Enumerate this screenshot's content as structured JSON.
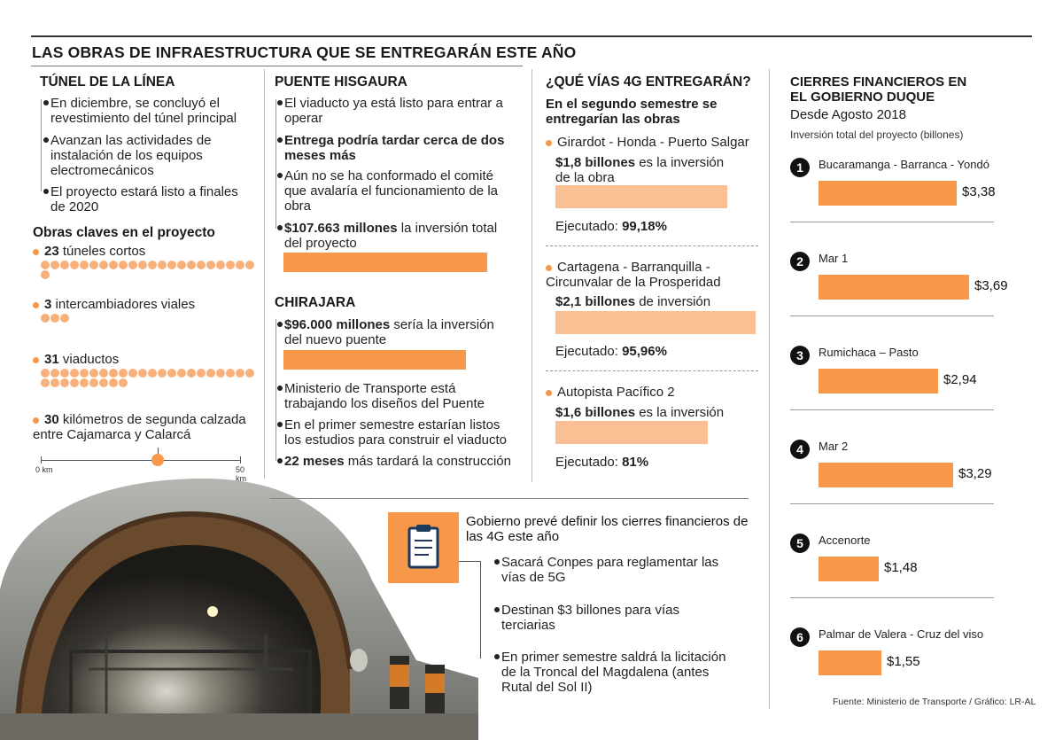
{
  "header": {
    "title": "LAS OBRAS DE INFRAESTRUCTURA QUE SE ENTREGARÁN ESTE AÑO"
  },
  "tunel": {
    "title": "TÚNEL DE LA LÍNEA",
    "items": [
      "En diciembre, se concluyó el revestimiento del túnel principal",
      "Avanzan las actividades de instalación de los equipos electromecánicos",
      "El proyecto estará listo a finales de 2020"
    ],
    "obras_title": "Obras claves en el proyecto",
    "obras": [
      {
        "num": "23",
        "text": "túneles cortos",
        "count": 23
      },
      {
        "num": "3",
        "text": "intercambiadores viales",
        "count": 3
      },
      {
        "num": "31",
        "text": "viaductos",
        "count": 31
      }
    ],
    "km_num": "30",
    "km_text": "kilómetros de segunda calzada entre Cajamarca y Calarcá",
    "scale_start": "0 km",
    "scale_end": "50 km",
    "scale_value": 30,
    "scale_max": 50
  },
  "hisgaura": {
    "title": "PUENTE HISGAURA",
    "items": [
      "El viaducto ya está listo para entrar a operar",
      "Entrega podría tardar cerca de dos meses más",
      "Aún no se ha conformado el comité que avalaría el funcionamiento de la obra"
    ],
    "inv_bold": "$107.663 millones",
    "inv_text": "la inversión total del proyecto"
  },
  "chirajara": {
    "title": "CHIRAJARA",
    "inv_bold": "$96.000 millones",
    "inv_text": "sería la inversión del nuevo puente",
    "items": [
      "Ministerio de Transporte está trabajando los diseños del Puente",
      "En el primer semestre estarían listos los estudios para construir el viaducto"
    ],
    "last_bold": "22 meses",
    "last_text": "más tardará la construcción"
  },
  "vias4g": {
    "title": "¿QUÉ VÍAS 4G ENTREGARÁN?",
    "subtitle": "En el segundo semestre se entregarían las obras",
    "exec_label": "Ejecutado:",
    "projects": [
      {
        "name": "Girardot - Honda - Puerto Salgar",
        "inv_bold": "$1,8 billones",
        "inv_text": "es la inversión de la obra",
        "executed": "99,18%",
        "value": 1.8
      },
      {
        "name": "Cartagena - Barranquilla - Circunvalar de la Prosperidad",
        "inv_bold": "$2,1 billones",
        "inv_text": "de inversión",
        "executed": "95,96%",
        "value": 2.1
      },
      {
        "name": "Autopista Pacífico 2",
        "inv_bold": "$1,6 billones",
        "inv_text": "es la inversión",
        "executed": "81%",
        "value": 1.6
      }
    ]
  },
  "gobierno": {
    "title": "Gobierno prevé definir los cierres financieros de las 4G este año",
    "items": [
      "Sacará Conpes para reglamentar las vías de 5G",
      "Destinan $3 billones para vías terciarias",
      "En primer semestre saldrá la licitación de la Troncal del Magdalena (antes Rutal del Sol II)"
    ]
  },
  "chart_data": {
    "type": "bar",
    "title": "CIERRES FINANCIEROS EN EL GOBIERNO DUQUE",
    "subtitle": "Desde Agosto 2018",
    "ylabel": "Inversión total del proyecto (billones)",
    "categories": [
      "Bucaramanga - Barranca - Yondó",
      "Mar 1",
      "Rumichaca – Pasto",
      "Mar 2",
      "Accenorte",
      "Palmar de Valera - Cruz del viso"
    ],
    "ranks": [
      "1",
      "2",
      "3",
      "4",
      "5",
      "6"
    ],
    "values": [
      3.38,
      3.69,
      2.94,
      3.29,
      1.48,
      1.55
    ],
    "labels": [
      "$3,38",
      "$3,69",
      "$2,94",
      "$3,29",
      "$1,48",
      "$1,55"
    ],
    "xlim": [
      0,
      3.69
    ]
  },
  "footer": {
    "source": "Fuente: Ministerio de Transporte / Gráfico: LR-AL"
  },
  "colors": {
    "accent": "#f7974a",
    "accent_light": "#fbbf94",
    "dot": "#f7b07a"
  }
}
